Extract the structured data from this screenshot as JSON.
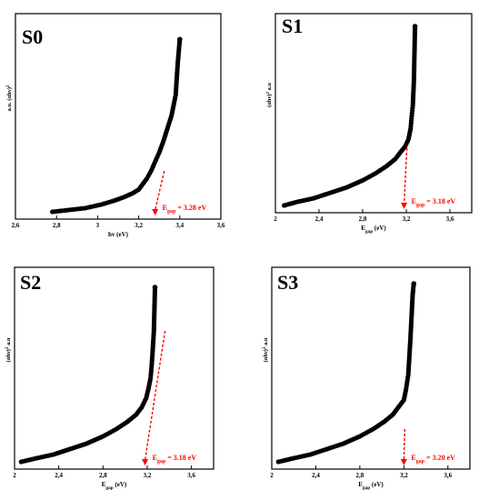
{
  "chart_data": [
    {
      "type": "scatter",
      "title": "S0",
      "xlabel": "hv (eV)",
      "ylabel": "a.u. (αhv)²",
      "xlim": [
        2.6,
        3.6
      ],
      "xticks": [
        "2,6",
        "2,8",
        "3",
        "3,2",
        "3,4",
        "3,6"
      ],
      "xtick_values": [
        2.6,
        2.8,
        3.0,
        3.2,
        3.4,
        3.6
      ],
      "ylim": [
        0,
        1
      ],
      "x": [
        2.78,
        2.86,
        2.94,
        3.02,
        3.08,
        3.13,
        3.17,
        3.2,
        3.22,
        3.24,
        3.26,
        3.28,
        3.3,
        3.32,
        3.34,
        3.36,
        3.38,
        3.39,
        3.4
      ],
      "y": [
        0.0,
        0.01,
        0.02,
        0.04,
        0.06,
        0.08,
        0.1,
        0.12,
        0.15,
        0.18,
        0.22,
        0.27,
        0.32,
        0.38,
        0.45,
        0.52,
        0.63,
        0.8,
        0.93
      ],
      "gap_label": "E_gap = 3.28 eV",
      "gap_value": 3.28
    },
    {
      "type": "scatter",
      "title": "S1",
      "xlabel": "Egap (eV)",
      "ylabel": "(αhν)² a.u",
      "xlim": [
        2.0,
        3.8
      ],
      "xticks": [
        "2",
        "2,4",
        "2,8",
        "3,2",
        "3,6"
      ],
      "xtick_values": [
        2.0,
        2.4,
        2.8,
        3.2,
        3.6
      ],
      "ylim": [
        0,
        1
      ],
      "x": [
        2.08,
        2.2,
        2.35,
        2.5,
        2.65,
        2.8,
        2.92,
        3.02,
        3.1,
        3.15,
        3.19,
        3.22,
        3.24,
        3.25,
        3.26,
        3.27,
        3.28
      ],
      "y": [
        0.0,
        0.02,
        0.04,
        0.07,
        0.1,
        0.14,
        0.18,
        0.22,
        0.26,
        0.3,
        0.33,
        0.37,
        0.43,
        0.5,
        0.56,
        0.7,
        1.0
      ],
      "gap_label": "E_gap = 3.18 eV",
      "gap_value": 3.18
    },
    {
      "type": "scatter",
      "title": "S2",
      "xlabel": "Egap (eV)",
      "ylabel": "(αhν)² a.u",
      "xlim": [
        2.0,
        3.8
      ],
      "xticks": [
        "2",
        "2,4",
        "2,8",
        "3,2",
        "3,6"
      ],
      "xtick_values": [
        2.0,
        2.4,
        2.8,
        3.2,
        3.6
      ],
      "ylim": [
        0,
        1
      ],
      "x": [
        2.06,
        2.2,
        2.35,
        2.5,
        2.65,
        2.8,
        2.92,
        3.02,
        3.1,
        3.15,
        3.19,
        3.21,
        3.23,
        3.24,
        3.25,
        3.26,
        3.27
      ],
      "y": [
        0.0,
        0.02,
        0.04,
        0.07,
        0.1,
        0.14,
        0.18,
        0.22,
        0.26,
        0.3,
        0.35,
        0.4,
        0.46,
        0.53,
        0.62,
        0.72,
        0.96
      ],
      "gap_label": "E_gap = 3.18 eV",
      "gap_value": 3.18
    },
    {
      "type": "scatter",
      "title": "S3",
      "xlabel": "Egap (eV)",
      "ylabel": "(αhν)² a.u",
      "xlim": [
        2.0,
        3.8
      ],
      "xticks": [
        "2",
        "2,4",
        "2,8",
        "3,2",
        "3,6"
      ],
      "xtick_values": [
        2.0,
        2.4,
        2.8,
        3.2,
        3.6
      ],
      "ylim": [
        0,
        1
      ],
      "x": [
        2.06,
        2.2,
        2.35,
        2.5,
        2.65,
        2.8,
        2.92,
        3.02,
        3.1,
        3.15,
        3.2,
        3.22,
        3.24,
        3.25,
        3.26,
        3.27,
        3.28,
        3.29
      ],
      "y": [
        0.0,
        0.02,
        0.04,
        0.07,
        0.1,
        0.14,
        0.18,
        0.22,
        0.26,
        0.3,
        0.34,
        0.4,
        0.48,
        0.58,
        0.68,
        0.8,
        0.92,
        0.98
      ],
      "gap_label": "E_gap = 3.20 eV",
      "gap_value": 3.2
    }
  ]
}
